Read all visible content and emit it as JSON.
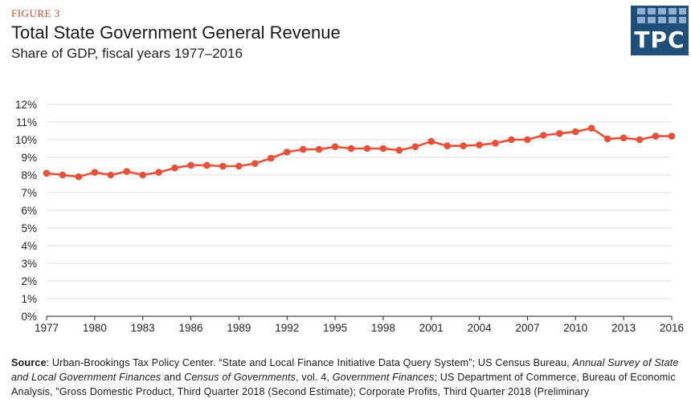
{
  "figure_label": "FIGURE 3",
  "logo": {
    "text": "TPC",
    "color": "#1f4e79"
  },
  "source": {
    "label": "Source",
    "part1": ": Urban-Brookings Tax Policy Center. “State and Local Finance Initiative Data Query System”; US Census Bureau, ",
    "part2": "Annual Survey of State and Local Government Finances",
    "part3": " and ",
    "part4": "Census of Governments",
    "part5": ", vol. 4, ",
    "part6": "Government Finances",
    "part7": "; US Department of Commerce, Bureau of Economic Analysis, ”Gross Domestic Product, Third Quarter 2018 (Second Estimate); Corporate Profits, Third Quarter 2018 (Preliminary"
  },
  "chart_data": {
    "type": "line",
    "title": "Total State Government General Revenue",
    "subtitle": "Share of GDP, fiscal years 1977–2016",
    "xlabel": "",
    "ylabel": "",
    "x": [
      1977,
      1978,
      1979,
      1980,
      1981,
      1982,
      1983,
      1984,
      1985,
      1986,
      1987,
      1988,
      1989,
      1990,
      1991,
      1992,
      1993,
      1994,
      1995,
      1996,
      1997,
      1998,
      1999,
      2000,
      2001,
      2002,
      2003,
      2004,
      2005,
      2006,
      2007,
      2008,
      2009,
      2010,
      2011,
      2012,
      2013,
      2014,
      2015,
      2016
    ],
    "series": [
      {
        "color": "#e8503a",
        "values": [
          8.1,
          8.0,
          7.9,
          8.15,
          8.0,
          8.2,
          8.0,
          8.15,
          8.4,
          8.55,
          8.55,
          8.5,
          8.5,
          8.65,
          8.95,
          9.3,
          9.45,
          9.45,
          9.6,
          9.5,
          9.5,
          9.5,
          9.4,
          9.6,
          9.9,
          9.65,
          9.65,
          9.7,
          9.8,
          10.0,
          10.0,
          10.25,
          10.35,
          10.45,
          10.65,
          10.05,
          10.1,
          10.0,
          10.2,
          10.2
        ]
      }
    ],
    "xticks": [
      1977,
      1980,
      1983,
      1986,
      1989,
      1992,
      1995,
      1998,
      2001,
      2004,
      2007,
      2010,
      2013,
      2016
    ],
    "yticks": [
      0,
      1,
      2,
      3,
      4,
      5,
      6,
      7,
      8,
      9,
      10,
      11,
      12
    ],
    "ytick_suffix": "%",
    "xlim": [
      1977,
      2016
    ],
    "ylim": [
      0,
      12
    ],
    "grid": true,
    "legend": "none"
  }
}
